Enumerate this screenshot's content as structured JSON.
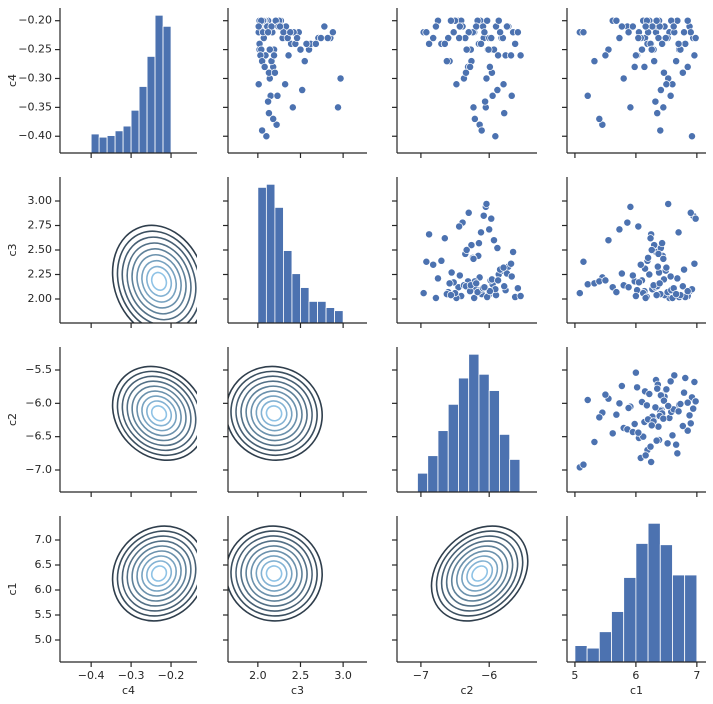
{
  "chart_data": {
    "type": "pairplot",
    "variables": [
      "c4",
      "c3",
      "c2",
      "c1"
    ],
    "color": "#4c72b0",
    "kde_colors": [
      "#2f3e4c",
      "#8fc3e6"
    ],
    "axes": [
      {
        "xlim": [
          -0.478,
          -0.135
        ],
        "ylim": [
          -0.429,
          -0.178
        ],
        "xticks": [
          {
            "value": -0.4,
            "label": "−0.4"
          },
          {
            "value": -0.3,
            "label": "−0.3"
          },
          {
            "value": -0.2,
            "label": "−0.2"
          }
        ],
        "yticks": [
          {
            "value": -0.2,
            "label": "−0.20"
          },
          {
            "value": -0.25,
            "label": "−0.25"
          },
          {
            "value": -0.3,
            "label": "−0.30"
          },
          {
            "value": -0.35,
            "label": "−0.35"
          },
          {
            "value": -0.4,
            "label": "−0.40"
          }
        ]
      },
      {
        "xlim": [
          1.65,
          3.28
        ],
        "ylim": [
          1.755,
          3.245
        ],
        "xticks": [
          {
            "value": 2,
            "label": "2.0"
          },
          2.5,
          {
            "value": 3,
            "label": "3.0"
          }
        ],
        "yticks": [
          {
            "value": 2,
            "label": "2.00"
          },
          2.25,
          {
            "value": 2.5,
            "label": "2.50"
          },
          2.75,
          {
            "value": 3,
            "label": "3.00"
          }
        ]
      },
      {
        "xlim": [
          -7.35,
          -5.3
        ],
        "ylim": [
          -7.33,
          -5.155
        ],
        "xticks": [
          {
            "value": -7,
            "label": "−7"
          },
          {
            "value": -6,
            "label": "−6"
          }
        ],
        "yticks": [
          {
            "value": -5.5,
            "label": "−5.5"
          },
          {
            "value": -6,
            "label": "−6.0"
          },
          {
            "value": -6.5,
            "label": "−6.5"
          },
          {
            "value": -7,
            "label": "−7.0"
          }
        ]
      },
      {
        "xlim": [
          4.87,
          7.15
        ],
        "ylim": [
          4.56,
          7.48
        ],
        "xticks": [
          5,
          6,
          7
        ],
        "yticks": [
          {
            "value": 5,
            "label": "5.0"
          },
          5.5,
          {
            "value": 6,
            "label": "6.0"
          },
          6.5,
          {
            "value": 7,
            "label": "7.0"
          }
        ]
      }
    ],
    "hist": [
      {
        "bins": [
          -0.4,
          -0.38,
          -0.36,
          -0.34,
          -0.32,
          -0.3,
          -0.28,
          -0.26,
          -0.24,
          -0.22,
          -0.2
        ],
        "counts": [
          12,
          10,
          11,
          14,
          17,
          27,
          42,
          61,
          87,
          80
        ]
      },
      {
        "bins": [
          2.0,
          2.1,
          2.2,
          2.3,
          2.4,
          2.5,
          2.6,
          2.7,
          2.8,
          2.9,
          3.0
        ],
        "counts": [
          88,
          90,
          75,
          47,
          32,
          23,
          14,
          14,
          10,
          8
        ]
      },
      {
        "bins": [
          -7.05,
          -6.9,
          -6.75,
          -6.6,
          -6.45,
          -6.3,
          -6.15,
          -6.0,
          -5.85,
          -5.7,
          -5.55
        ],
        "counts": [
          15,
          29,
          49,
          70,
          91,
          110,
          94,
          81,
          46,
          26
        ]
      },
      {
        "bins": [
          5.0,
          5.2,
          5.4,
          5.6,
          5.8,
          6.0,
          6.2,
          6.4,
          6.6,
          6.8,
          7.0
        ],
        "counts": [
          13,
          11,
          24,
          40,
          67,
          94,
          110,
          93,
          69,
          69
        ]
      }
    ],
    "columns": [
      [
        -0.21,
        -0.23,
        -0.2,
        -0.25,
        -0.22,
        -0.28,
        -0.21,
        -0.24,
        -0.33,
        -0.22,
        -0.2,
        -0.26,
        -0.23,
        -0.3,
        -0.21,
        -0.24,
        -0.38,
        -0.22,
        -0.27,
        -0.2,
        -0.25,
        -0.23,
        -0.35,
        -0.21,
        -0.29,
        -0.22,
        -0.24,
        -0.2,
        -0.31,
        -0.23,
        -0.21,
        -0.26,
        -0.22,
        -0.39,
        -0.25,
        -0.2,
        -0.28,
        -0.23,
        -0.21,
        -0.34,
        -0.24,
        -0.22,
        -0.27,
        -0.2,
        -0.32,
        -0.21,
        -0.25,
        -0.23,
        -0.36,
        -0.22,
        -0.2,
        -0.29,
        -0.24,
        -0.21,
        -0.26,
        -0.23,
        -0.37,
        -0.22,
        -0.2,
        -0.3,
        -0.25,
        -0.21,
        -0.27,
        -0.24,
        -0.4,
        -0.22,
        -0.2,
        -0.33,
        -0.23,
        -0.21,
        -0.28,
        -0.25,
        -0.22,
        -0.31,
        -0.2,
        -0.24,
        -0.26,
        -0.21,
        -0.35,
        -0.23
      ],
      [
        2.05,
        2.31,
        2.12,
        2.02,
        2.48,
        2.18,
        2.08,
        2.66,
        2.15,
        2.01,
        2.27,
        2.09,
        2.85,
        2.14,
        2.04,
        2.39,
        2.22,
        2.11,
        2.55,
        2.03,
        2.19,
        2.07,
        2.94,
        2.33,
        2.13,
        2.06,
        2.44,
        2.25,
        2.01,
        2.71,
        2.1,
        2.36,
        2.17,
        2.05,
        2.6,
        2.21,
        2.08,
        2.29,
        2.78,
        2.12,
        2.02,
        2.42,
        2.16,
        2.09,
        2.52,
        2.24,
        2.04,
        2.35,
        2.13,
        2.88,
        2.07,
        2.2,
        2.62,
        2.11,
        2.03,
        2.46,
        2.18,
        2.3,
        2.06,
        2.97,
        2.14,
        2.26,
        2.05,
        2.57,
        2.1,
        2.38,
        2.02,
        2.23,
        2.74,
        2.16,
        2.08,
        2.5,
        2.12,
        2.32,
        2.04,
        2.68,
        2.19,
        2.01,
        2.41,
        2.82
      ],
      [
        -6.1,
        -5.82,
        -6.45,
        -6.02,
        -5.65,
        -6.31,
        -6.18,
        -6.88,
        -5.95,
        -6.22,
        -6.55,
        -5.76,
        -6.08,
        -6.37,
        -5.9,
        -6.7,
        -6.14,
        -5.58,
        -6.26,
        -6.41,
        -5.98,
        -6.6,
        -6.05,
        -5.72,
        -6.34,
        -6.96,
        -6.16,
        -5.86,
        -6.48,
        -6.0,
        -6.2,
        -5.68,
        -6.52,
        -6.11,
        -5.93,
        -6.75,
        -6.28,
        -5.8,
        -6.39,
        -6.06,
        -5.62,
        -6.24,
        -6.58,
        -6.13,
        -5.88,
        -6.43,
        -6.01,
        -6.82,
        -5.78,
        -6.3,
        -6.17,
        -5.96,
        -6.65,
        -6.09,
        -5.54,
        -6.35,
        -6.21,
        -5.84,
        -6.5,
        -6.04,
        -6.27,
        -5.74,
        -6.62,
        -6.15,
        -5.91,
        -6.92,
        -6.03,
        -5.67,
        -6.44,
        -6.19,
        -5.99,
        -6.33,
        -6.07,
        -5.79,
        -6.56,
        -6.12,
        -5.87,
        -6.78,
        -6.23,
        -5.97
      ],
      [
        6.42,
        6.15,
        5.62,
        6.71,
        6.33,
        5.98,
        6.88,
        6.25,
        5.21,
        6.55,
        6.38,
        6.02,
        6.94,
        5.8,
        6.47,
        6.19,
        5.45,
        6.63,
        6.3,
        6.85,
        6.1,
        6.52,
        5.91,
        6.36,
        6.77,
        5.08,
        6.44,
        6.22,
        6.6,
        5.73,
        6.27,
        6.96,
        6.05,
        6.4,
        5.55,
        6.68,
        6.14,
        6.49,
        5.86,
        6.32,
        6.81,
        6.2,
        5.32,
        6.58,
        6.41,
        5.95,
        6.73,
        6.08,
        6.35,
        6.9,
        5.68,
        6.46,
        6.24,
        6.62,
        6.0,
        6.37,
        5.4,
        6.79,
        6.12,
        6.53,
        6.29,
        5.77,
        6.66,
        6.43,
        6.92,
        5.14,
        6.18,
        6.57,
        6.04,
        6.39,
        6.85,
        6.26,
        5.88,
        6.5,
        6.34,
        6.7,
        5.5,
        6.16,
        6.45,
        6.98
      ]
    ]
  }
}
